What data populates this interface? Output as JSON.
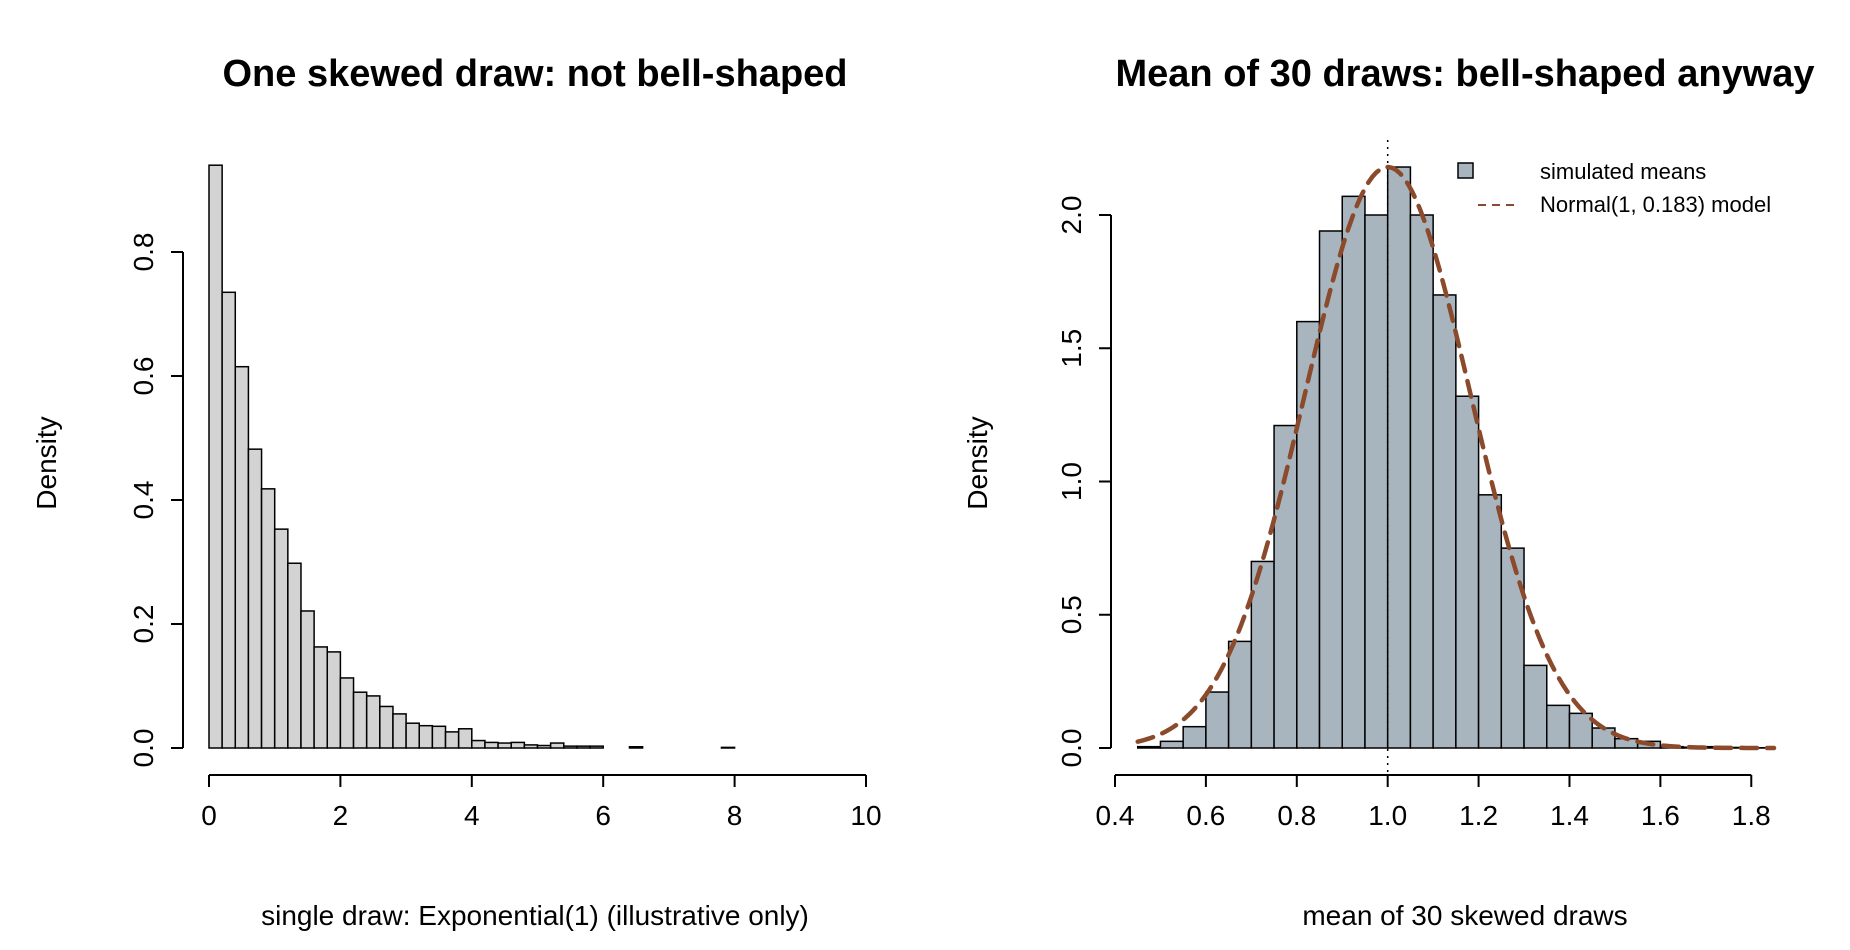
{
  "colors": {
    "left_bar_fill": "#d3d3d3",
    "right_bar_fill": "#a8b5bf",
    "bar_edge": "#000000",
    "curve": "#8b4a2b",
    "axis": "#000000"
  },
  "chart_data": [
    {
      "type": "bar",
      "subtype": "histogram",
      "title": "One skewed draw: not bell-shaped",
      "xlabel": "single draw: Exponential(1) (illustrative only)",
      "ylabel": "Density",
      "xlim": [
        0,
        10
      ],
      "ylim": [
        0,
        0.94
      ],
      "x_ticks": [
        "0",
        "2",
        "4",
        "6",
        "8",
        "10"
      ],
      "x_tick_values": [
        0,
        2,
        4,
        6,
        8,
        10
      ],
      "y_ticks": [
        "0.0",
        "0.2",
        "0.4",
        "0.6",
        "0.8"
      ],
      "y_tick_values": [
        0,
        0.2,
        0.4,
        0.6,
        0.8
      ],
      "bin_width": 0.2,
      "bin_start": 0,
      "values": [
        0.94,
        0.735,
        0.615,
        0.482,
        0.418,
        0.353,
        0.298,
        0.221,
        0.163,
        0.155,
        0.113,
        0.09,
        0.084,
        0.067,
        0.055,
        0.04,
        0.036,
        0.035,
        0.026,
        0.031,
        0.012,
        0.009,
        0.008,
        0.009,
        0.005,
        0.004,
        0.008,
        0.003,
        0.003,
        0.003,
        0.0,
        0.0,
        0.002,
        0.0,
        0.0,
        0.0,
        0.0,
        0.0,
        0.0,
        0.001,
        0.0,
        0.0,
        0.0,
        0.0,
        0.0,
        0.0,
        0.0,
        0.0,
        0.0,
        0.0
      ],
      "grid": false
    },
    {
      "type": "bar",
      "subtype": "histogram",
      "title": "Mean of 30 draws: bell-shaped anyway",
      "xlabel": "mean of 30 skewed draws",
      "ylabel": "Density",
      "xlim": [
        0.4,
        1.85
      ],
      "ylim": [
        0,
        2.2
      ],
      "x_ticks": [
        "0.4",
        "0.6",
        "0.8",
        "1.0",
        "1.2",
        "1.4",
        "1.6",
        "1.8"
      ],
      "x_tick_values": [
        0.4,
        0.6,
        0.8,
        1.0,
        1.2,
        1.4,
        1.6,
        1.8
      ],
      "y_ticks": [
        "0.0",
        "0.5",
        "1.0",
        "1.5",
        "2.0"
      ],
      "y_tick_values": [
        0,
        0.5,
        1.0,
        1.5,
        2.0
      ],
      "bin_width": 0.05,
      "bin_start": 0.45,
      "values": [
        0.005,
        0.025,
        0.08,
        0.21,
        0.4,
        0.7,
        1.21,
        1.6,
        1.94,
        2.07,
        2.0,
        2.18,
        2.0,
        1.7,
        1.32,
        0.95,
        0.75,
        0.31,
        0.16,
        0.13,
        0.075,
        0.035,
        0.025,
        0.005,
        0.003,
        0.005,
        0.002,
        0.001
      ],
      "reference_line_x": 1.0,
      "normal_model": {
        "mean": 1,
        "sd": 0.183,
        "x_range": [
          0.45,
          1.85
        ]
      },
      "legend": {
        "position": "top-right",
        "entries": [
          "simulated means",
          "Normal(1, 0.183) model"
        ]
      },
      "grid": false
    }
  ]
}
